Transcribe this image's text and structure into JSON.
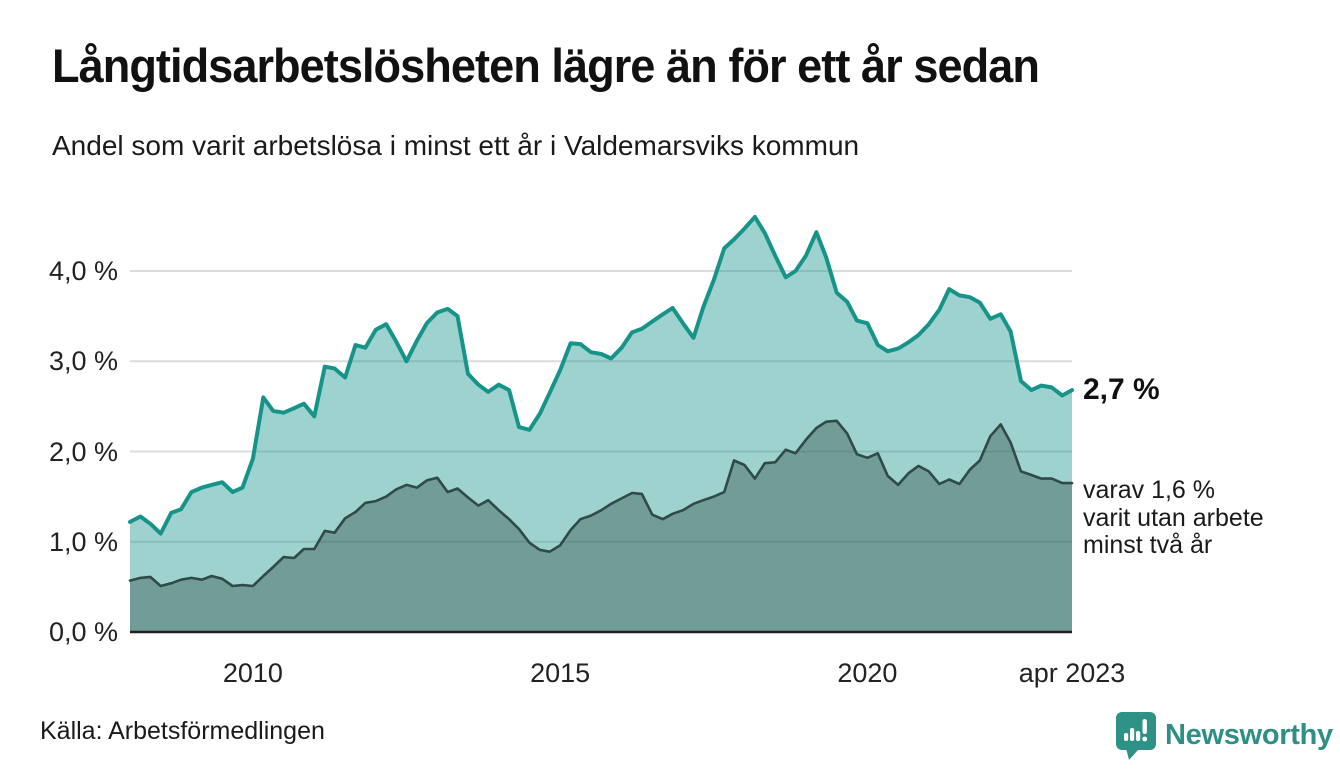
{
  "header": {
    "title": "Långtidsarbetslösheten lägre än för ett år sedan",
    "subtitle": "Andel som varit arbetslösa i minst ett år i Valdemarsviks kommun"
  },
  "annotations": {
    "latest_value": "2,7 %",
    "two_year_lines": {
      "0": "varav 1,6 %",
      "1": "varit utan arbete",
      "2": "minst två år"
    }
  },
  "footer": {
    "source": "Källa: Arbetsförmedlingen",
    "logo_text": "Newsworthy"
  },
  "colors": {
    "line_one_year": "#17948A",
    "line_two_year": "#2F4A47",
    "fill_one_year_opacity": 0.42,
    "fill_two_year_opacity": 0.4,
    "gridline": "#dcdcdc",
    "baseline": "#1f1f1f",
    "brand_teal": "#2E8F85"
  },
  "chart_data": {
    "type": "area",
    "title": "Långtidsarbetslösheten lägre än för ett år sedan",
    "subtitle": "Andel som varit arbetslösa i minst ett år i Valdemarsviks kommun",
    "xlabel": "",
    "ylabel": "",
    "grid": "horizontal",
    "legend_position": "none",
    "xlim": [
      2008.0,
      2023.33
    ],
    "ylim": [
      0,
      4.65
    ],
    "y_ticks": [
      {
        "v": 0,
        "label": "0,0 %"
      },
      {
        "v": 1,
        "label": "1,0 %"
      },
      {
        "v": 2,
        "label": "2,0 %"
      },
      {
        "v": 3,
        "label": "3,0 %"
      },
      {
        "v": 4,
        "label": "4,0 %"
      }
    ],
    "x_ticks": [
      {
        "v": 2010,
        "label": "2010"
      },
      {
        "v": 2015,
        "label": "2015"
      },
      {
        "v": 2020,
        "label": "2020"
      },
      {
        "v": 2023.33,
        "label": "apr 2023"
      }
    ],
    "x": [
      2008.0,
      2008.17,
      2008.33,
      2008.5,
      2008.67,
      2008.83,
      2009.0,
      2009.17,
      2009.33,
      2009.5,
      2009.67,
      2009.83,
      2010.0,
      2010.17,
      2010.33,
      2010.5,
      2010.67,
      2010.83,
      2011.0,
      2011.17,
      2011.33,
      2011.5,
      2011.67,
      2011.83,
      2012.0,
      2012.17,
      2012.33,
      2012.5,
      2012.67,
      2012.83,
      2013.0,
      2013.17,
      2013.33,
      2013.5,
      2013.67,
      2013.83,
      2014.0,
      2014.17,
      2014.33,
      2014.5,
      2014.67,
      2014.83,
      2015.0,
      2015.17,
      2015.33,
      2015.5,
      2015.67,
      2015.83,
      2016.0,
      2016.17,
      2016.33,
      2016.5,
      2016.67,
      2016.83,
      2017.0,
      2017.17,
      2017.33,
      2017.5,
      2017.67,
      2017.83,
      2018.0,
      2018.17,
      2018.33,
      2018.5,
      2018.67,
      2018.83,
      2019.0,
      2019.17,
      2019.33,
      2019.5,
      2019.67,
      2019.83,
      2020.0,
      2020.17,
      2020.33,
      2020.5,
      2020.67,
      2020.83,
      2021.0,
      2021.17,
      2021.33,
      2021.5,
      2021.67,
      2021.83,
      2022.0,
      2022.17,
      2022.33,
      2022.5,
      2022.67,
      2022.83,
      2023.0,
      2023.17,
      2023.33
    ],
    "series": [
      {
        "name": "Andel som varit arbetslösa i minst ett år",
        "end_label": "2,7 %",
        "values": [
          1.22,
          1.28,
          1.2,
          1.09,
          1.32,
          1.36,
          1.55,
          1.6,
          1.63,
          1.66,
          1.55,
          1.6,
          1.92,
          2.6,
          2.45,
          2.43,
          2.48,
          2.53,
          2.39,
          2.94,
          2.92,
          2.82,
          3.18,
          3.15,
          3.35,
          3.41,
          3.22,
          3.0,
          3.23,
          3.42,
          3.54,
          3.58,
          3.5,
          2.86,
          2.74,
          2.66,
          2.74,
          2.68,
          2.27,
          2.24,
          2.42,
          2.65,
          2.9,
          3.2,
          3.19,
          3.1,
          3.08,
          3.03,
          3.15,
          3.32,
          3.36,
          3.44,
          3.52,
          3.59,
          3.42,
          3.26,
          3.6,
          3.9,
          4.25,
          4.35,
          4.47,
          4.6,
          4.42,
          4.17,
          3.93,
          4.0,
          4.17,
          4.43,
          4.15,
          3.76,
          3.66,
          3.45,
          3.42,
          3.18,
          3.11,
          3.14,
          3.21,
          3.29,
          3.41,
          3.57,
          3.8,
          3.73,
          3.71,
          3.65,
          3.47,
          3.52,
          3.33,
          2.78,
          2.68,
          2.73,
          2.71,
          2.62,
          2.68
        ]
      },
      {
        "name": "varav utan arbete minst två år",
        "end_label": "1,6 %",
        "values": [
          0.57,
          0.6,
          0.61,
          0.51,
          0.54,
          0.58,
          0.6,
          0.58,
          0.62,
          0.59,
          0.51,
          0.52,
          0.51,
          0.62,
          0.72,
          0.83,
          0.82,
          0.92,
          0.92,
          1.12,
          1.1,
          1.26,
          1.33,
          1.43,
          1.45,
          1.5,
          1.58,
          1.63,
          1.6,
          1.68,
          1.71,
          1.55,
          1.59,
          1.49,
          1.4,
          1.46,
          1.35,
          1.25,
          1.14,
          0.99,
          0.91,
          0.89,
          0.96,
          1.13,
          1.25,
          1.29,
          1.35,
          1.42,
          1.48,
          1.54,
          1.53,
          1.3,
          1.25,
          1.31,
          1.35,
          1.42,
          1.46,
          1.5,
          1.55,
          1.9,
          1.85,
          1.7,
          1.87,
          1.88,
          2.02,
          1.98,
          2.13,
          2.26,
          2.33,
          2.34,
          2.2,
          1.97,
          1.93,
          1.98,
          1.73,
          1.63,
          1.76,
          1.84,
          1.78,
          1.64,
          1.69,
          1.64,
          1.8,
          1.9,
          2.17,
          2.3,
          2.1,
          1.78,
          1.74,
          1.7,
          1.7,
          1.65,
          1.65
        ]
      }
    ]
  }
}
